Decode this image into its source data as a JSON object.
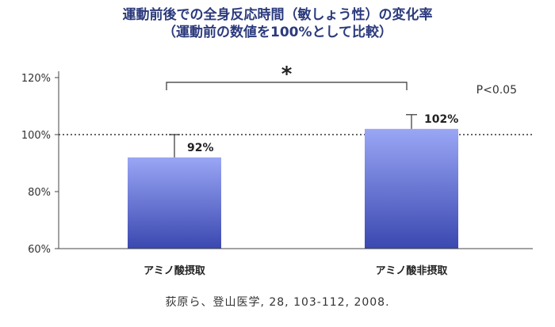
{
  "chart_data": {
    "type": "bar",
    "title": [
      "運動前後での全身反応時間（敏しょう性）の変化率",
      "（運動前の数値を100%として比較）"
    ],
    "categories": [
      "アミノ酸摂取",
      "アミノ酸非摂取"
    ],
    "values": [
      92,
      102
    ],
    "value_labels": [
      "92%",
      "102%"
    ],
    "error_upper": [
      100,
      107
    ],
    "ylim": [
      60,
      120
    ],
    "yticks": [
      60,
      80,
      100,
      120
    ],
    "ytick_labels": [
      "60%",
      "80%",
      "100%",
      "120%"
    ],
    "reference_line": 100,
    "significance": {
      "marker": "*",
      "between": [
        0,
        1
      ],
      "note": "P<0.05"
    },
    "bar_gradient": [
      "#9aa6f5",
      "#3a48b0"
    ],
    "grid": false
  },
  "citation": "荻原ら、登山医学, 28, 103-112, 2008."
}
